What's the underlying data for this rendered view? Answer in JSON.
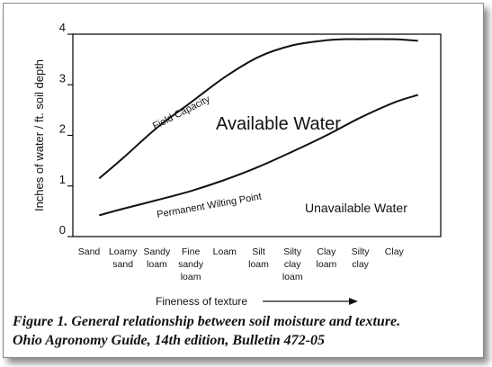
{
  "chart_data": {
    "type": "line",
    "ylabel": "Inches of water / ft. soil depth",
    "xlabel": "Fineness of texture",
    "ylim": [
      0,
      4
    ],
    "yticks": [
      0,
      1,
      2,
      3,
      4
    ],
    "categories": [
      [
        "Sand"
      ],
      [
        "Loamy",
        "sand"
      ],
      [
        "Sandy",
        "loam"
      ],
      [
        "Fine",
        "sandy",
        "loam"
      ],
      [
        "Loam"
      ],
      [
        "Silt",
        "loam"
      ],
      [
        "Silty",
        "clay",
        "loam"
      ],
      [
        "Clay",
        "loam"
      ],
      [
        "Silty",
        "clay"
      ],
      [
        "Clay"
      ]
    ],
    "series": [
      {
        "name": "Field Capacity",
        "x": [
          0.3,
          1.0,
          2.0,
          3.0,
          4.0,
          5.0,
          6.0,
          7.0,
          7.5,
          8.0,
          9.0,
          9.7
        ],
        "values": [
          1.15,
          1.55,
          2.15,
          2.65,
          3.15,
          3.55,
          3.78,
          3.88,
          3.9,
          3.9,
          3.9,
          3.87
        ]
      },
      {
        "name": "Permanent Wilting Point",
        "x": [
          0.3,
          1.0,
          2.0,
          3.0,
          4.0,
          5.0,
          6.0,
          7.0,
          8.0,
          9.0,
          9.7
        ],
        "values": [
          0.42,
          0.55,
          0.72,
          0.9,
          1.12,
          1.38,
          1.68,
          2.0,
          2.35,
          2.65,
          2.8
        ]
      }
    ],
    "annotations": [
      {
        "text": "Available Water"
      },
      {
        "text": "Unavailable Water"
      }
    ]
  },
  "caption": {
    "line1": "Figure 1. General relationship between soil moisture and texture.",
    "line2": "Ohio Agronomy Guide, 14th edition, Bulletin 472-05"
  }
}
